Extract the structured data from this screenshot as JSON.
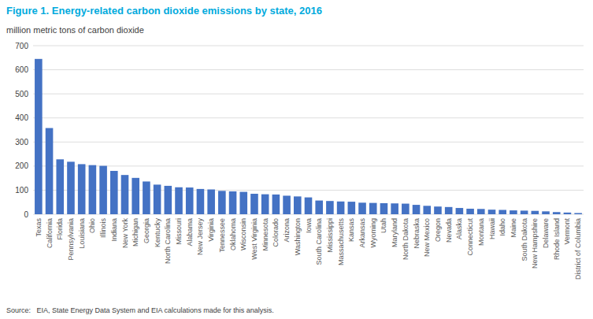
{
  "chart_data": {
    "type": "bar",
    "title": "Figure 1. Energy-related carbon dioxide emissions by state, 2016",
    "y_label": "million metric tons of carbon dioxide",
    "annotations": [
      "Source:   EIA, State Energy Data System and EIA calculations made for this analysis."
    ],
    "categories": [
      "Texas",
      "California",
      "Florida",
      "Pennsylvania",
      "Louisiana",
      "Ohio",
      "Illinois",
      "Indiana",
      "New York",
      "Michigan",
      "Georgia",
      "Kentucky",
      "North Carolina",
      "Missouri",
      "Alabama",
      "New Jersey",
      "Virginia",
      "Tennessee",
      "Oklahoma",
      "Wisconsin",
      "West Virginia",
      "Minnesota",
      "Colorado",
      "Arizona",
      "Washington",
      "Iowa",
      "South Carolina",
      "Mississippi",
      "Massachusetts",
      "Kansas",
      "Arkansas",
      "Wyoming",
      "Utah",
      "Maryland",
      "North Dakota",
      "Nebraska",
      "New Mexico",
      "Oregon",
      "Nevada",
      "Alaska",
      "Connecticut",
      "Montana",
      "Hawaii",
      "Idaho",
      "Maine",
      "South Dakota",
      "New Hampshire",
      "Delaware",
      "Rhode Island",
      "Vermont",
      "District of Columbia"
    ],
    "values": [
      645,
      358,
      228,
      218,
      208,
      204,
      201,
      180,
      163,
      151,
      136,
      123,
      118,
      112,
      111,
      105,
      103,
      97,
      95,
      93,
      85,
      83,
      82,
      77,
      74,
      70,
      57,
      55,
      53,
      52,
      48,
      47,
      46,
      45,
      44,
      39,
      35,
      32,
      30,
      26,
      23,
      22,
      19,
      18,
      16,
      15,
      14,
      12,
      9,
      7,
      5
    ],
    "color": "#4472C4",
    "ylim": [
      0,
      700
    ],
    "yticks": [
      0,
      100,
      200,
      300,
      400,
      500,
      600,
      700
    ],
    "grid": true
  }
}
